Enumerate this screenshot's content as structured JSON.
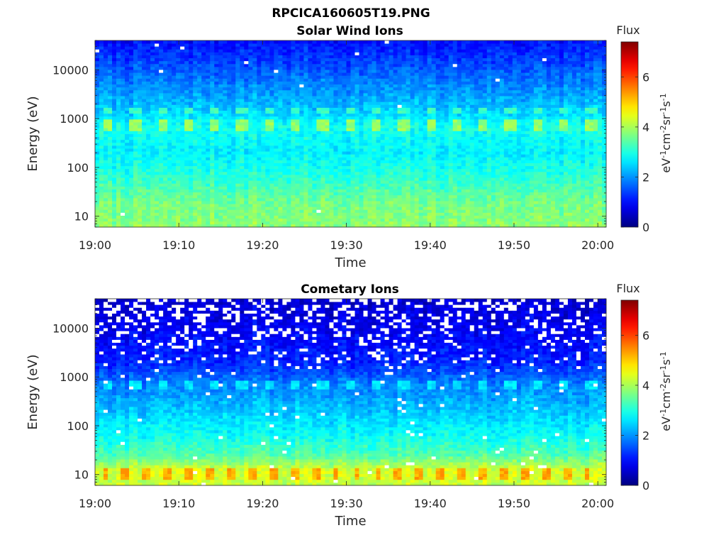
{
  "figure": {
    "title": "RPCICA160605T19.PNG"
  },
  "chart_data": [
    {
      "type": "heatmap",
      "title": "Solar Wind Ions",
      "xlabel": "Time",
      "ylabel": "Energy (eV)",
      "x_ticks": [
        "19:00",
        "19:10",
        "19:20",
        "19:30",
        "19:40",
        "19:50",
        "20:00"
      ],
      "xlim": [
        "19:00",
        "20:01"
      ],
      "y_scale": "log",
      "y_ticks": [
        10,
        100,
        1000,
        10000
      ],
      "y_tick_labels": [
        "10",
        "100",
        "1000",
        "10000"
      ],
      "ylim": [
        6,
        40000
      ],
      "colorbar": {
        "title": "Flux",
        "label_parts": [
          "eV",
          "-1",
          "cm",
          "-2",
          "sr",
          "-1",
          "s",
          "-1"
        ],
        "ticks": [
          0,
          2,
          4,
          6
        ],
        "tick_labels": [
          "0",
          "2",
          "4",
          "6"
        ],
        "range": [
          0,
          7.4
        ],
        "colormap": "jet"
      },
      "profile_log_flux": [
        {
          "energy_ev": 6,
          "value": 3.8
        },
        {
          "energy_ev": 20,
          "value": 3.6
        },
        {
          "energy_ev": 60,
          "value": 3.1
        },
        {
          "energy_ev": 200,
          "value": 2.7
        },
        {
          "energy_ev": 700,
          "value": 2.9
        },
        {
          "energy_ev": 1500,
          "value": 2.4
        },
        {
          "energy_ev": 5000,
          "value": 1.9
        },
        {
          "energy_ev": 15000,
          "value": 1.4
        },
        {
          "energy_ev": 40000,
          "value": 1.0
        }
      ],
      "peak_band": {
        "energy_ev": 700,
        "value": 3.6,
        "every_minutes": 3.2
      },
      "secondary_band": {
        "energy_ev": 1500,
        "value": 3.0,
        "every_minutes": 3.2
      },
      "missing_fraction": 0.003
    },
    {
      "type": "heatmap",
      "title": "Cometary Ions",
      "xlabel": "Time",
      "ylabel": "Energy (eV)",
      "x_ticks": [
        "19:00",
        "19:10",
        "19:20",
        "19:30",
        "19:40",
        "19:50",
        "20:00"
      ],
      "xlim": [
        "19:00",
        "20:01"
      ],
      "y_scale": "log",
      "y_ticks": [
        10,
        100,
        1000,
        10000
      ],
      "y_tick_labels": [
        "10",
        "100",
        "1000",
        "10000"
      ],
      "ylim": [
        6,
        40000
      ],
      "colorbar": {
        "title": "Flux",
        "label_parts": [
          "eV",
          "-1",
          "cm",
          "-2",
          "sr",
          "-1",
          "s",
          "-1"
        ],
        "ticks": [
          0,
          2,
          4,
          6
        ],
        "tick_labels": [
          "0",
          "2",
          "4",
          "6"
        ],
        "range": [
          0,
          7.4
        ],
        "colormap": "jet"
      },
      "profile_log_flux": [
        {
          "energy_ev": 6,
          "value": 4.2
        },
        {
          "energy_ev": 12,
          "value": 4.4
        },
        {
          "energy_ev": 25,
          "value": 3.4
        },
        {
          "energy_ev": 60,
          "value": 2.9
        },
        {
          "energy_ev": 200,
          "value": 2.4
        },
        {
          "energy_ev": 700,
          "value": 1.9
        },
        {
          "energy_ev": 2000,
          "value": 1.2
        },
        {
          "energy_ev": 8000,
          "value": 0.9
        },
        {
          "energy_ev": 40000,
          "value": 0.6
        }
      ],
      "peak_band": {
        "energy_ev": 10,
        "value": 5.0,
        "every_minutes": 2.5
      },
      "secondary_band": {
        "energy_ev": 700,
        "value": 2.4,
        "every_minutes": 3.2
      },
      "missing_fraction": 0.12
    }
  ]
}
